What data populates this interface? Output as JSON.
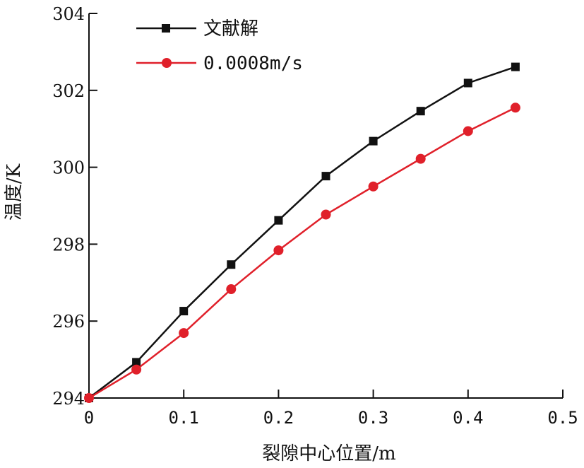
{
  "chart_data": {
    "type": "line",
    "xlabel": "裂隙中心位置/m",
    "ylabel": "温度/K",
    "xlim": [
      0,
      0.5
    ],
    "ylim": [
      294,
      304
    ],
    "xticks": [
      0,
      0.1,
      0.2,
      0.3,
      0.4,
      0.5
    ],
    "xtick_labels": [
      "0",
      "0.1",
      "0.2",
      "0.3",
      "0.4",
      "0.5"
    ],
    "yticks": [
      294,
      296,
      298,
      300,
      302,
      304
    ],
    "ytick_labels": [
      "294",
      "296",
      "298",
      "300",
      "302",
      "304"
    ],
    "grid": false,
    "legend_position": "top-left",
    "x": [
      0,
      0.05,
      0.1,
      0.15,
      0.2,
      0.25,
      0.3,
      0.35,
      0.4,
      0.45
    ],
    "series": [
      {
        "name": "文献解",
        "color": "#111111",
        "marker": "square",
        "values": [
          294.0,
          294.93,
          296.26,
          297.47,
          298.62,
          299.77,
          300.68,
          301.46,
          302.19,
          302.61
        ]
      },
      {
        "name": "0.0008m/s",
        "color": "#e0202a",
        "marker": "circle",
        "values": [
          294.0,
          294.74,
          295.69,
          296.83,
          297.84,
          298.77,
          299.5,
          300.22,
          300.94,
          301.55
        ]
      }
    ]
  }
}
